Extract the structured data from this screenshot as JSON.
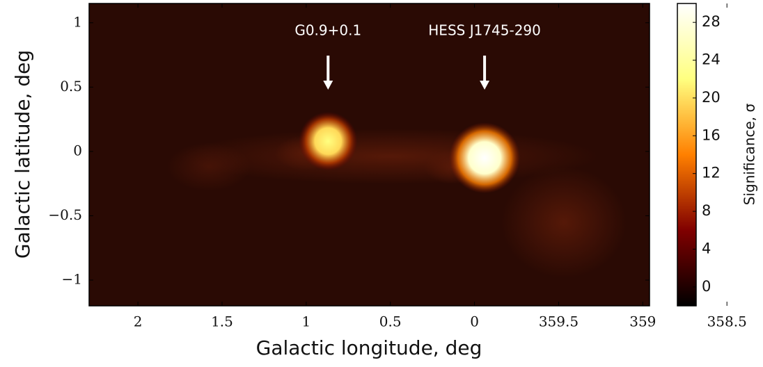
{
  "chart_data": {
    "type": "heatmap",
    "xlabel": "Galactic longitude, deg",
    "ylabel": "Galactic latitude, deg",
    "colorbar_label": "Significance, σ",
    "xlim": [
      2.29,
      -1.04
    ],
    "ylim": [
      -1.2,
      1.15
    ],
    "xticks": [
      2,
      1.5,
      1,
      0.5,
      0,
      {
        "value": -0.5,
        "label": "359.5"
      },
      {
        "value": -1,
        "label": "359"
      },
      {
        "value": -1.5,
        "label": "358.5"
      }
    ],
    "yticks": [
      1,
      0.5,
      0,
      {
        "value": -0.5,
        "label": "−0.5"
      },
      {
        "value": -1,
        "label": "−1"
      }
    ],
    "clim": [
      -2,
      30
    ],
    "cticks": [
      0,
      4,
      8,
      12,
      16,
      20,
      24,
      28
    ],
    "sources": [
      {
        "name": "G0.9+0.1",
        "l": 0.87,
        "b": 0.08,
        "peak": 22
      },
      {
        "name": "HESS J1745-290",
        "l": -0.06,
        "b": -0.05,
        "peak": 30
      }
    ]
  }
}
